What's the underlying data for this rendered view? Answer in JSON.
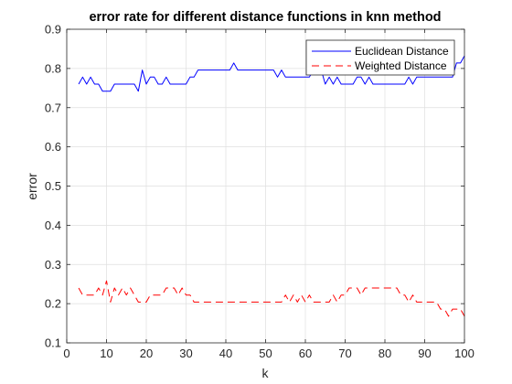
{
  "chart_data": {
    "type": "line",
    "title": "error rate for different distance functions in knn method",
    "xlabel": "k",
    "ylabel": "error",
    "xlim": [
      0,
      100
    ],
    "ylim": [
      0.1,
      0.9
    ],
    "xticks": [
      0,
      10,
      20,
      30,
      40,
      50,
      60,
      70,
      80,
      90,
      100
    ],
    "yticks": [
      0.1,
      0.2,
      0.3,
      0.4,
      0.5,
      0.6,
      0.7,
      0.8,
      0.9
    ],
    "xtick_labels": [
      "0",
      "10",
      "20",
      "30",
      "40",
      "50",
      "60",
      "70",
      "80",
      "90",
      "100"
    ],
    "ytick_labels": [
      "0.1",
      "0.2",
      "0.3",
      "0.4",
      "0.5",
      "0.6",
      "0.7",
      "0.8",
      "0.9"
    ],
    "grid": true,
    "legend_position": "top-right",
    "series": [
      {
        "name": "Euclidean Distance",
        "color": "#0000ff",
        "style": "solid",
        "x": [
          3,
          4,
          5,
          6,
          7,
          8,
          9,
          10,
          11,
          12,
          13,
          14,
          15,
          16,
          17,
          18,
          19,
          20,
          21,
          22,
          23,
          24,
          25,
          26,
          27,
          28,
          29,
          30,
          31,
          32,
          33,
          34,
          35,
          36,
          37,
          38,
          39,
          40,
          41,
          42,
          43,
          44,
          45,
          46,
          47,
          48,
          49,
          50,
          51,
          52,
          53,
          54,
          55,
          56,
          57,
          58,
          59,
          60,
          61,
          62,
          63,
          64,
          65,
          66,
          67,
          68,
          69,
          70,
          71,
          72,
          73,
          74,
          75,
          76,
          77,
          78,
          79,
          80,
          81,
          82,
          83,
          84,
          85,
          86,
          87,
          88,
          89,
          90,
          91,
          92,
          93,
          94,
          95,
          96,
          97,
          98,
          99,
          100
        ],
        "y": [
          0.76,
          0.778,
          0.76,
          0.778,
          0.76,
          0.76,
          0.742,
          0.742,
          0.742,
          0.76,
          0.76,
          0.76,
          0.76,
          0.76,
          0.76,
          0.742,
          0.796,
          0.76,
          0.778,
          0.778,
          0.76,
          0.76,
          0.778,
          0.76,
          0.76,
          0.76,
          0.76,
          0.76,
          0.778,
          0.778,
          0.796,
          0.796,
          0.796,
          0.796,
          0.796,
          0.796,
          0.796,
          0.796,
          0.796,
          0.814,
          0.796,
          0.796,
          0.796,
          0.796,
          0.796,
          0.796,
          0.796,
          0.796,
          0.796,
          0.796,
          0.778,
          0.796,
          0.778,
          0.778,
          0.778,
          0.778,
          0.778,
          0.778,
          0.778,
          0.796,
          0.796,
          0.796,
          0.76,
          0.778,
          0.76,
          0.778,
          0.76,
          0.76,
          0.76,
          0.76,
          0.778,
          0.778,
          0.76,
          0.778,
          0.76,
          0.76,
          0.76,
          0.76,
          0.76,
          0.76,
          0.76,
          0.76,
          0.76,
          0.778,
          0.76,
          0.778,
          0.778,
          0.778,
          0.778,
          0.778,
          0.778,
          0.778,
          0.778,
          0.778,
          0.778,
          0.814,
          0.814,
          0.832
        ]
      },
      {
        "name": "Weighted Distance",
        "color": "#ff0000",
        "style": "dashed",
        "x": [
          3,
          4,
          5,
          6,
          7,
          8,
          9,
          10,
          11,
          12,
          13,
          14,
          15,
          16,
          17,
          18,
          19,
          20,
          21,
          22,
          23,
          24,
          25,
          26,
          27,
          28,
          29,
          30,
          31,
          32,
          33,
          34,
          35,
          36,
          37,
          38,
          39,
          40,
          41,
          42,
          43,
          44,
          45,
          46,
          47,
          48,
          49,
          50,
          51,
          52,
          53,
          54,
          55,
          56,
          57,
          58,
          59,
          60,
          61,
          62,
          63,
          64,
          65,
          66,
          67,
          68,
          69,
          70,
          71,
          72,
          73,
          74,
          75,
          76,
          77,
          78,
          79,
          80,
          81,
          82,
          83,
          84,
          85,
          86,
          87,
          88,
          89,
          90,
          91,
          92,
          93,
          94,
          95,
          96,
          97,
          98,
          99,
          100
        ],
        "y": [
          0.24,
          0.222,
          0.222,
          0.222,
          0.222,
          0.24,
          0.222,
          0.258,
          0.204,
          0.24,
          0.222,
          0.24,
          0.222,
          0.24,
          0.222,
          0.204,
          0.204,
          0.204,
          0.222,
          0.222,
          0.222,
          0.222,
          0.24,
          0.24,
          0.24,
          0.222,
          0.24,
          0.222,
          0.222,
          0.204,
          0.204,
          0.204,
          0.204,
          0.204,
          0.204,
          0.204,
          0.204,
          0.204,
          0.204,
          0.204,
          0.204,
          0.204,
          0.204,
          0.204,
          0.204,
          0.204,
          0.204,
          0.204,
          0.204,
          0.204,
          0.204,
          0.204,
          0.222,
          0.204,
          0.222,
          0.204,
          0.222,
          0.204,
          0.222,
          0.204,
          0.204,
          0.204,
          0.204,
          0.204,
          0.222,
          0.204,
          0.222,
          0.222,
          0.24,
          0.24,
          0.24,
          0.222,
          0.24,
          0.24,
          0.24,
          0.24,
          0.24,
          0.24,
          0.24,
          0.24,
          0.24,
          0.222,
          0.222,
          0.204,
          0.222,
          0.204,
          0.204,
          0.204,
          0.204,
          0.204,
          0.204,
          0.186,
          0.186,
          0.168,
          0.186,
          0.186,
          0.186,
          0.168
        ]
      }
    ]
  }
}
